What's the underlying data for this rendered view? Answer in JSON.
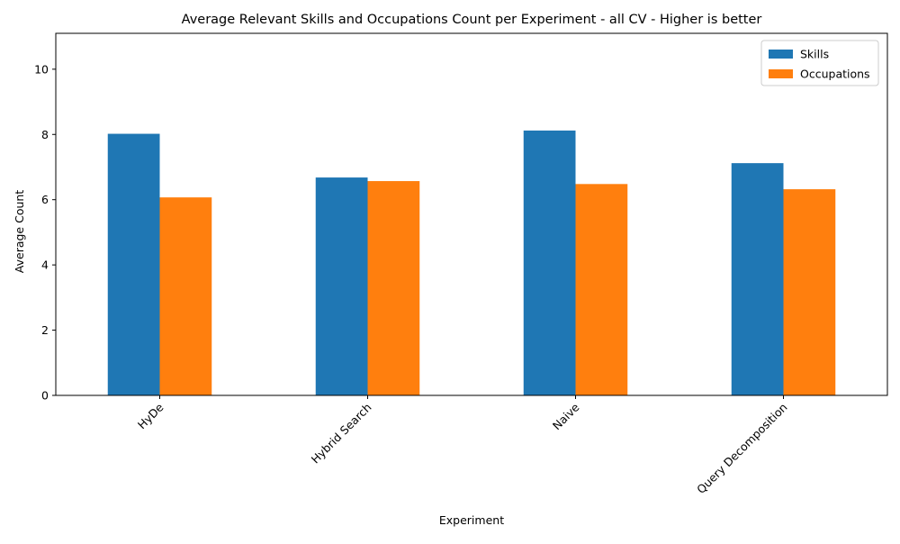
{
  "chart_data": {
    "type": "bar",
    "title": "Average Relevant Skills and Occupations Count per Experiment - all CV - Higher is better",
    "xlabel": "Experiment",
    "ylabel": "Average Count",
    "categories": [
      "HyDe",
      "Hybrid Search",
      "Naive",
      "Query Decomposition"
    ],
    "series": [
      {
        "name": "Skills",
        "color": "#1f77b4",
        "values": [
          8.02,
          6.68,
          8.12,
          7.12
        ]
      },
      {
        "name": "Occupations",
        "color": "#ff7f0e",
        "values": [
          6.07,
          6.57,
          6.48,
          6.32
        ]
      }
    ],
    "ylim": [
      0,
      11.1
    ],
    "yticks": [
      0,
      2,
      4,
      6,
      8,
      10
    ],
    "grid": false,
    "legend_position": "top-right",
    "xtick_rotation_deg": 45
  }
}
